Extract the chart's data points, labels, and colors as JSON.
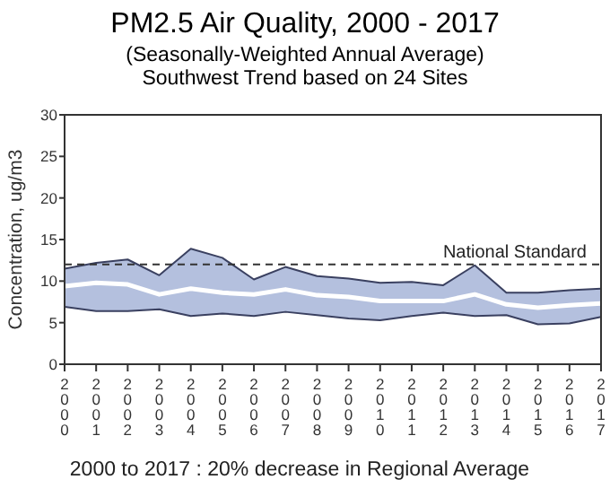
{
  "chart_data": {
    "type": "line",
    "title": "PM2.5 Air Quality, 2000 - 2017",
    "subtitle": "(Seasonally-Weighted Annual Average)\nSouthwest Trend based on 24 Sites",
    "ylabel": "Concentration, ug/m3",
    "categories": [
      "2000",
      "2001",
      "2002",
      "2003",
      "2004",
      "2005",
      "2006",
      "2007",
      "2008",
      "2009",
      "2010",
      "2011",
      "2012",
      "2013",
      "2014",
      "2015",
      "2016",
      "2017"
    ],
    "series": [
      {
        "color": "#3a4060",
        "values": [
          11.5,
          12.2,
          12.6,
          10.7,
          13.9,
          12.8,
          10.2,
          11.7,
          10.6,
          10.3,
          9.8,
          9.9,
          9.5,
          11.9,
          8.6,
          8.6,
          8.9,
          9.1
        ]
      },
      {
        "color": "#3a4060",
        "values": [
          6.9,
          6.4,
          6.4,
          6.6,
          5.8,
          6.1,
          5.8,
          6.3,
          5.9,
          5.5,
          5.3,
          5.8,
          6.2,
          5.8,
          5.9,
          4.8,
          4.9,
          5.7
        ]
      },
      {
        "color": "#ffffff",
        "values": [
          9.4,
          9.8,
          9.6,
          8.4,
          9.1,
          8.6,
          8.4,
          9.0,
          8.3,
          8.1,
          7.6,
          7.6,
          7.6,
          8.4,
          7.2,
          6.8,
          7.1,
          7.3
        ],
        "lower": [
          6.9,
          6.4,
          6.4,
          6.6,
          5.8,
          6.1,
          5.8,
          6.3,
          5.9,
          5.5,
          5.3,
          5.8,
          6.2,
          5.8,
          5.9,
          4.8,
          4.9,
          5.7
        ],
        "upper": [
          11.5,
          12.2,
          12.6,
          10.7,
          13.9,
          12.8,
          10.2,
          11.7,
          10.6,
          10.3,
          9.8,
          9.9,
          9.5,
          11.9,
          8.6,
          8.6,
          8.9,
          9.1
        ]
      }
    ],
    "ylim": [
      0,
      30
    ],
    "yticks": [
      0,
      5,
      10,
      15,
      20,
      25,
      30
    ],
    "ref_lines": [
      {
        "axis": "y",
        "value": 12,
        "label": "National Standard",
        "color": "#333333",
        "line_style": "dashed"
      }
    ],
    "annotations": [
      "2000 to 2017 :  20% decrease in Regional Average"
    ]
  }
}
